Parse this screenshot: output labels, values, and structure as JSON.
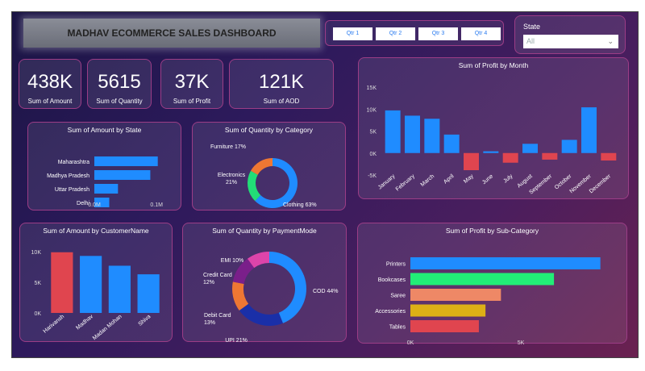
{
  "dashboard": {
    "title": "MADHAV ECOMMERCE SALES DASHBOARD",
    "quarters": [
      "Qtr 1",
      "Qtr 2",
      "Qtr 3",
      "Qtr 4"
    ],
    "state_filter": {
      "label": "State",
      "value": "All"
    }
  },
  "kpis": [
    {
      "value": "438K",
      "label": "Sum of Amount"
    },
    {
      "value": "5615",
      "label": "Sum of Quantity"
    },
    {
      "value": "37K",
      "label": "Sum of Profit"
    },
    {
      "value": "121K",
      "label": "Sum of AOD"
    }
  ],
  "colors": {
    "blue": "#1f8cff",
    "red": "#e0454f"
  },
  "chart_data": [
    {
      "id": "amount_by_state",
      "type": "bar",
      "orientation": "horizontal",
      "title": "Sum of Amount by State",
      "categories": [
        "Maharashtra",
        "Madhya Pradesh",
        "Uttar Pradesh",
        "Delhi"
      ],
      "values": [
        102000,
        90000,
        38000,
        24000
      ],
      "tick_values": [
        0,
        100000
      ],
      "tick_labels": [
        "0.0M",
        "0.1M"
      ],
      "xlim": [
        0,
        140000
      ]
    },
    {
      "id": "quantity_by_category",
      "type": "pie",
      "donut": true,
      "title": "Sum of Quantity by Category",
      "categories": [
        "Clothing",
        "Electronics",
        "Furniture"
      ],
      "values": [
        63,
        21,
        17
      ],
      "labels": [
        "Clothing 63%",
        "Electronics 21%",
        "Furniture 17%"
      ],
      "colors": [
        "#1f8cff",
        "#22dd77",
        "#ee7733"
      ]
    },
    {
      "id": "profit_by_month",
      "type": "bar",
      "title": "Sum of Profit by Month",
      "categories": [
        "January",
        "February",
        "March",
        "April",
        "May",
        "June",
        "July",
        "August",
        "September",
        "October",
        "November",
        "December"
      ],
      "values": [
        9700,
        8500,
        7800,
        4200,
        -3900,
        400,
        -2200,
        2100,
        -1500,
        3000,
        10400,
        -1700
      ],
      "tick_values": [
        -5000,
        0,
        5000,
        10000,
        15000
      ],
      "tick_labels": [
        "-5K",
        "0K",
        "5K",
        "10K",
        "15K"
      ],
      "ylim": [
        -5000,
        15000
      ]
    },
    {
      "id": "amount_by_customer",
      "type": "bar",
      "title": "Sum of Amount by CustomerName",
      "categories": [
        "Harivansh",
        "Madhav",
        "Madan Mohan",
        "Shiva"
      ],
      "values": [
        9900,
        9300,
        7700,
        6300
      ],
      "tick_values": [
        0,
        5000,
        10000
      ],
      "tick_labels": [
        "0K",
        "5K",
        "10K"
      ],
      "ylim": [
        0,
        10000
      ],
      "bar_colors": [
        "#e0454f",
        "#1f8cff",
        "#1f8cff",
        "#1f8cff"
      ]
    },
    {
      "id": "quantity_by_paymentmode",
      "type": "pie",
      "donut": true,
      "title": "Sum of Quantity by PaymentMode",
      "categories": [
        "COD",
        "UPI",
        "Debit Card",
        "Credit Card",
        "EMI"
      ],
      "values": [
        44,
        21,
        13,
        12,
        10
      ],
      "labels": [
        "COD 44%",
        "UPI 21%",
        "Debit Card 13%",
        "Credit Card 12%",
        "EMI 10%"
      ],
      "colors": [
        "#1f8cff",
        "#1a2fa8",
        "#ee7733",
        "#7a1f8a",
        "#dd44aa"
      ]
    },
    {
      "id": "profit_by_subcategory",
      "type": "bar",
      "orientation": "horizontal",
      "title": "Sum of Profit by Sub-Category",
      "categories": [
        "Printers",
        "Bookcases",
        "Saree",
        "Accessories",
        "Tables"
      ],
      "values": [
        8600,
        6500,
        4100,
        3400,
        3100
      ],
      "bar_colors": [
        "#1f8cff",
        "#22ee77",
        "#ee8866",
        "#ddb016",
        "#e0454f"
      ],
      "tick_values": [
        0,
        5000
      ],
      "tick_labels": [
        "0K",
        "5K"
      ],
      "xlim": [
        0,
        10000
      ],
      "more_indicator": "..."
    }
  ]
}
